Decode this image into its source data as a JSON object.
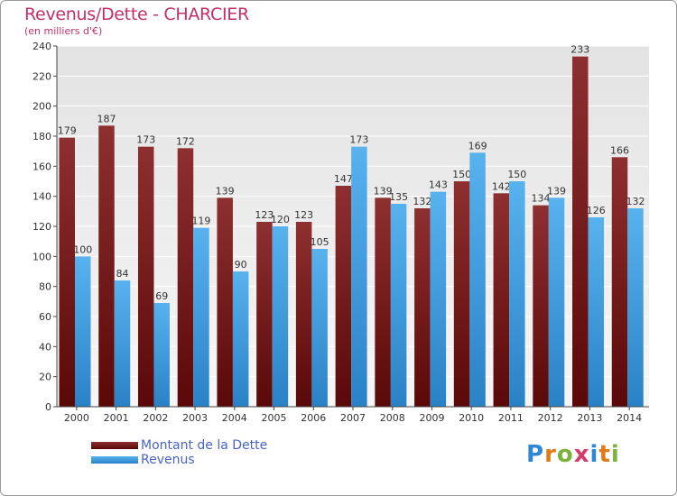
{
  "chart_data": {
    "type": "bar",
    "title": "Revenus/Dette - CHARCIER",
    "subtitle": "(en milliers d'€)",
    "xlabel": "",
    "ylabel": "",
    "ylim": [
      0,
      240
    ],
    "yticks": [
      0,
      20,
      40,
      60,
      80,
      100,
      120,
      140,
      160,
      180,
      200,
      220,
      240
    ],
    "grid": true,
    "categories": [
      "2000",
      "2001",
      "2002",
      "2003",
      "2004",
      "2005",
      "2006",
      "2007",
      "2008",
      "2009",
      "2010",
      "2011",
      "2012",
      "2013",
      "2014"
    ],
    "series": [
      {
        "name": "Montant de la Dette",
        "color": "#8b2a2a",
        "values": [
          179,
          187,
          173,
          172,
          139,
          123,
          123,
          147,
          139,
          132,
          150,
          142,
          134,
          233,
          166
        ]
      },
      {
        "name": "Revenus",
        "color": "#4aa3e8",
        "values": [
          100,
          84,
          69,
          119,
          90,
          120,
          105,
          173,
          135,
          143,
          169,
          150,
          139,
          126,
          132
        ]
      }
    ],
    "legend": "bottom-left"
  },
  "logo": {
    "letters": [
      "P",
      "r",
      "o",
      "x",
      "i",
      "t",
      "i"
    ],
    "colors": [
      "#2f86d6",
      "#e07b1a",
      "#7ab23a",
      "#d63a6a",
      "#2f86d6",
      "#e07b1a",
      "#7ab23a"
    ]
  }
}
